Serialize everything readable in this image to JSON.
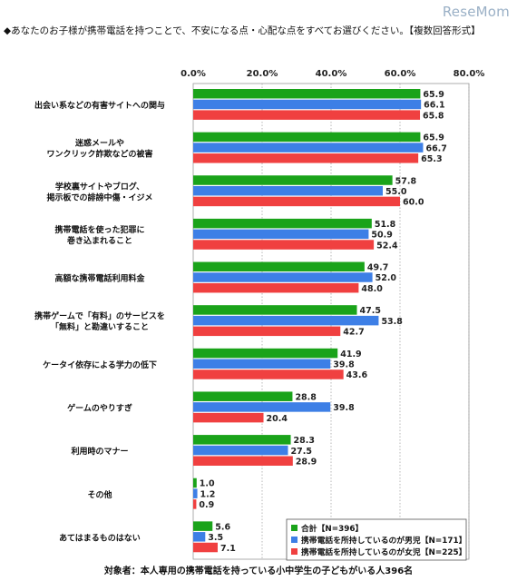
{
  "brand": "ReseMom",
  "question": "◆あなたのお子様が携帯電話を持つことで、不安になる点・心配な点をすべてお選びください。【複数回答形式】",
  "footer_note": "対象者：本人専用の携帯電話を持っている小中学生の子どもがいる人396名",
  "colors": {
    "total": "#1aa31a",
    "boys": "#3d7fe6",
    "girls": "#f04040",
    "grid": "#9a9a9a",
    "panel_bg": "#ffffff"
  },
  "chart_data": {
    "type": "bar",
    "orientation": "horizontal",
    "xlim": [
      0,
      80
    ],
    "ticks": [
      "0.0%",
      "20.0%",
      "40.0%",
      "60.0%",
      "80.0%"
    ],
    "tick_values": [
      0,
      20,
      40,
      60,
      80
    ],
    "grid": true,
    "legend_position": "bottom-right",
    "categories": [
      [
        "出会い系などの有害サイトへの関与"
      ],
      [
        "迷惑メールや",
        "ワンクリック詐欺などの被害"
      ],
      [
        "学校裏サイトやブログ、",
        "掲示板での誹謗中傷・イジメ"
      ],
      [
        "携帯電話を使った犯罪に",
        "巻き込まれること"
      ],
      [
        "高額な携帯電話利用料金"
      ],
      [
        "携帯ゲームで「有料」のサービスを",
        "「無料」と勘違いすること"
      ],
      [
        "ケータイ依存による学力の低下"
      ],
      [
        "ゲームのやりすぎ"
      ],
      [
        "利用時のマナー"
      ],
      [
        "その他"
      ],
      [
        "あてはまるものはない"
      ]
    ],
    "series": [
      {
        "name": "合計【N=396】",
        "color_key": "total",
        "values": [
          65.9,
          65.9,
          57.8,
          51.8,
          49.7,
          47.5,
          41.9,
          28.8,
          28.3,
          1.0,
          5.6
        ]
      },
      {
        "name": "携帯電話を所持しているのが男児【N=171】",
        "color_key": "boys",
        "values": [
          66.1,
          66.7,
          55.0,
          50.9,
          52.0,
          53.8,
          39.8,
          39.8,
          27.5,
          1.2,
          3.5
        ]
      },
      {
        "name": "携帯電話を所持しているのが女児【N=225】",
        "color_key": "girls",
        "values": [
          65.8,
          65.3,
          60.0,
          52.4,
          48.0,
          42.7,
          43.6,
          20.4,
          28.9,
          0.9,
          7.1
        ]
      }
    ]
  }
}
